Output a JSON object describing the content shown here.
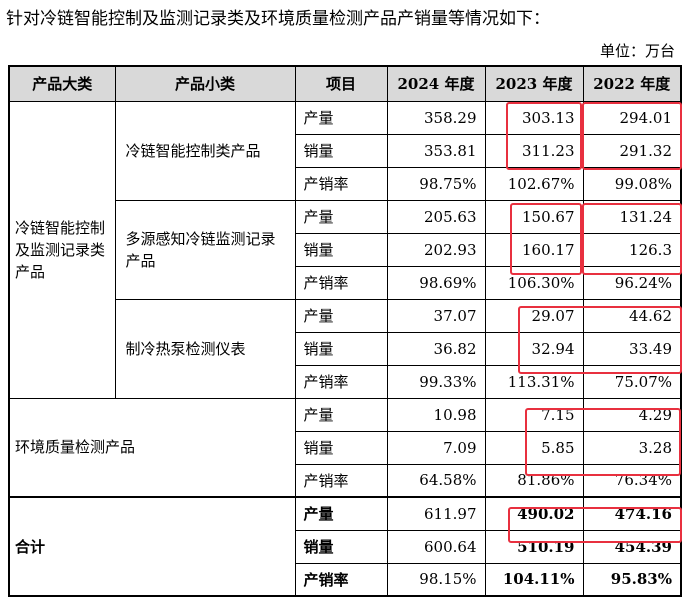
{
  "intro": "针对冷链智能控制及监测记录类及环境质量检测产品产销量等情况如下：",
  "unit": "单位：万台",
  "headers": {
    "category": "产品大类",
    "subcategory": "产品小类",
    "item": "项目",
    "y2024": "2024 年度",
    "y2023": "2023 年度",
    "y2022": "2022 年度"
  },
  "groups": {
    "coldchain": {
      "label": "冷链智能控制及监测记录类产品",
      "subs": [
        {
          "label": "冷链智能控制类产品",
          "rows": [
            {
              "item": "产量",
              "y2024": "358.29",
              "y2023": "303.13",
              "y2022": "294.01"
            },
            {
              "item": "销量",
              "y2024": "353.81",
              "y2023": "311.23",
              "y2022": "291.32"
            },
            {
              "item": "产销率",
              "y2024": "98.75%",
              "y2023": "102.67%",
              "y2022": "99.08%"
            }
          ]
        },
        {
          "label": "多源感知冷链监测记录产品",
          "rows": [
            {
              "item": "产量",
              "y2024": "205.63",
              "y2023": "150.67",
              "y2022": "131.24"
            },
            {
              "item": "销量",
              "y2024": "202.93",
              "y2023": "160.17",
              "y2022": "126.3"
            },
            {
              "item": "产销率",
              "y2024": "98.69%",
              "y2023": "106.30%",
              "y2022": "96.24%"
            }
          ]
        },
        {
          "label": "制冷热泵检测仪表",
          "rows": [
            {
              "item": "产量",
              "y2024": "37.07",
              "y2023": "29.07",
              "y2022": "44.62"
            },
            {
              "item": "销量",
              "y2024": "36.82",
              "y2023": "32.94",
              "y2022": "33.49"
            },
            {
              "item": "产销率",
              "y2024": "99.33%",
              "y2023": "113.31%",
              "y2022": "75.07%"
            }
          ]
        }
      ]
    },
    "env": {
      "label": "环境质量检测产品",
      "rows": [
        {
          "item": "产量",
          "y2024": "10.98",
          "y2023": "7.15",
          "y2022": "4.29"
        },
        {
          "item": "销量",
          "y2024": "7.09",
          "y2023": "5.85",
          "y2022": "3.28"
        },
        {
          "item": "产销率",
          "y2024": "64.58%",
          "y2023": "81.86%",
          "y2022": "76.34%"
        }
      ]
    },
    "total": {
      "label": "合计",
      "rows": [
        {
          "item": "产量",
          "y2024": "611.97",
          "y2023": "490.02",
          "y2022": "474.16"
        },
        {
          "item": "销量",
          "y2024": "600.64",
          "y2023": "510.19",
          "y2022": "454.39"
        },
        {
          "item": "产销率",
          "y2024": "98.15%",
          "y2023": "104.11%",
          "y2022": "95.83%"
        }
      ]
    }
  },
  "highlight_color": "#e8303f"
}
